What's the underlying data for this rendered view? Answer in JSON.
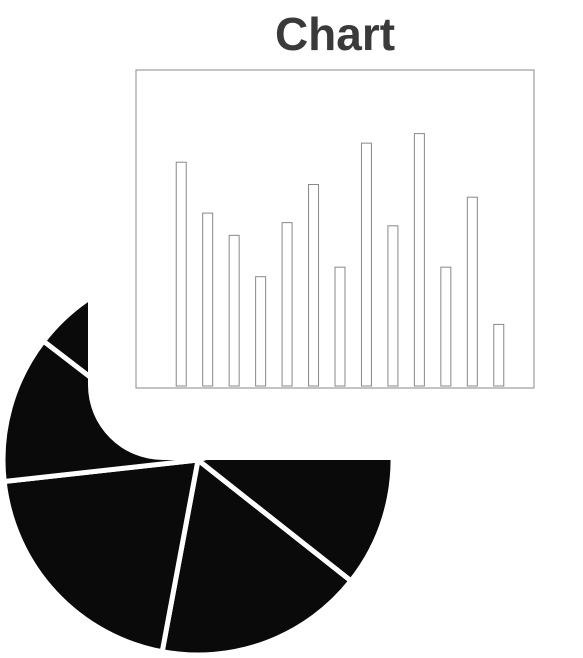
{
  "chart_data": [
    {
      "type": "bar",
      "title": "Chart",
      "categories": [
        null,
        null,
        null,
        null,
        null,
        null,
        null,
        null,
        null,
        null,
        null,
        null,
        null
      ],
      "values": [
        71,
        55,
        48,
        35,
        52,
        64,
        38,
        77,
        51,
        80,
        38,
        60,
        20
      ],
      "color": "#ffffff",
      "ylim": [
        0,
        100
      ]
    },
    {
      "type": "pie",
      "values": [
        17.3,
        20.3,
        12.2,
        20,
        15,
        15.2
      ],
      "color": "#0a0a0a"
    }
  ]
}
